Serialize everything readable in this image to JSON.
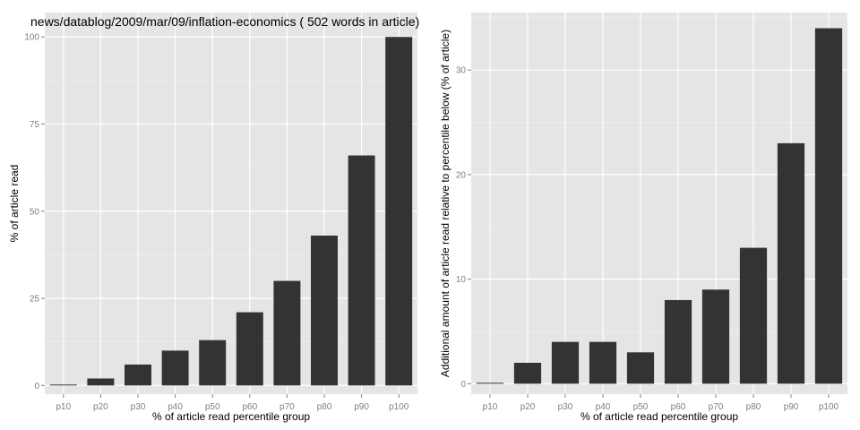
{
  "chart_data": [
    {
      "type": "bar",
      "title": "news/datablog/2009/mar/09/inflation-economics ( 502 words in article)",
      "xlabel": "% of article read percentile group",
      "ylabel": "% of article read",
      "categories": [
        "p10",
        "p20",
        "p30",
        "p40",
        "p50",
        "p60",
        "p70",
        "p80",
        "p90",
        "p100"
      ],
      "values": [
        0,
        2,
        6,
        10,
        13,
        21,
        30,
        43,
        66,
        100
      ],
      "ylim": [
        -2.5,
        107
      ],
      "yticks": [
        0,
        25,
        50,
        75,
        100
      ],
      "grid": true,
      "colors": {
        "bar": "#333333",
        "panel": "#e5e5e5",
        "grid": "#ffffff",
        "minor_grid": "#f2f2f2"
      }
    },
    {
      "type": "bar",
      "title": "",
      "xlabel": "% of article read percentile group",
      "ylabel": "Additional amount of article read relative to percentile below (% of article)",
      "categories": [
        "p10",
        "p20",
        "p30",
        "p40",
        "p50",
        "p60",
        "p70",
        "p80",
        "p90",
        "p100"
      ],
      "values": [
        0,
        2,
        4,
        4,
        3,
        8,
        9,
        13,
        23,
        34
      ],
      "ylim": [
        -1,
        35.5
      ],
      "yticks": [
        0,
        10,
        20,
        30
      ],
      "grid": true,
      "colors": {
        "bar": "#333333",
        "panel": "#e5e5e5",
        "grid": "#ffffff",
        "minor_grid": "#f2f2f2"
      }
    }
  ]
}
